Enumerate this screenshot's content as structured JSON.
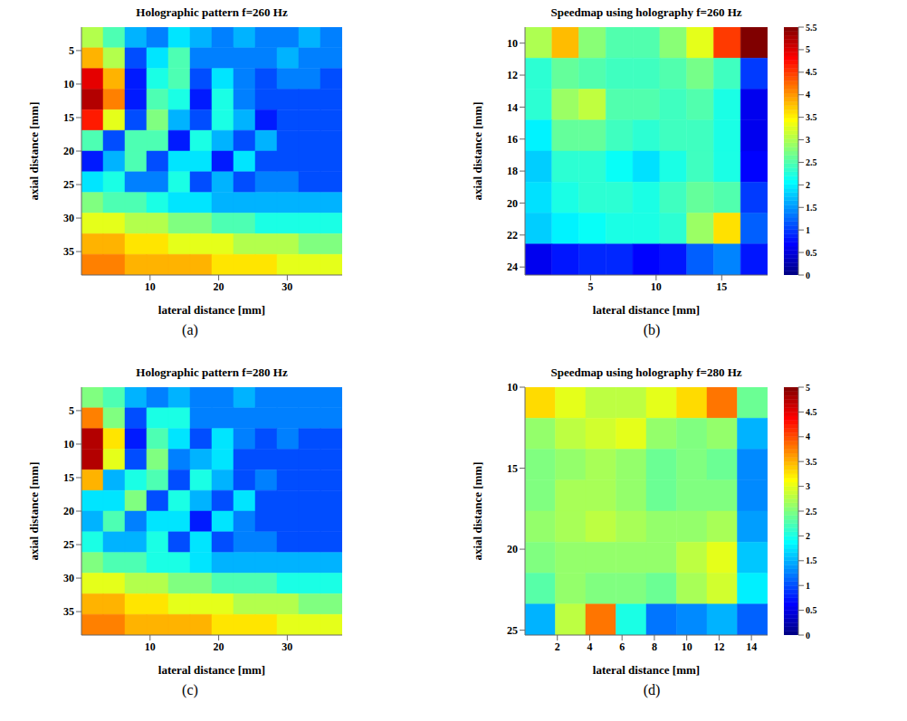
{
  "chart_data": [
    {
      "type": "heatmap",
      "panel": "(a)",
      "title": "Holographic pattern f=260 Hz",
      "xlabel": "lateral distance [mm]",
      "ylabel": "axial distance [mm]",
      "xlim": [
        0,
        38
      ],
      "xticks": [
        10,
        20,
        30
      ],
      "ylim": [
        1.5,
        38.5
      ],
      "yticks": [
        5,
        10,
        15,
        20,
        25,
        30,
        35
      ],
      "x": [
        1.58,
        4.75,
        7.92,
        11.08,
        14.25,
        17.42,
        20.58,
        23.75,
        26.92,
        30.08,
        33.25,
        36.42
      ],
      "y": [
        3.04,
        6.13,
        9.21,
        12.29,
        15.38,
        18.46,
        21.54,
        24.63,
        27.71,
        30.79,
        33.88,
        36.96
      ],
      "color_range": [
        0,
        1
      ],
      "cells": [
        [
          0.55,
          0.45,
          0.3,
          0.25,
          0.35,
          0.3,
          0.25,
          0.3,
          0.25,
          0.25,
          0.3,
          0.25
        ],
        [
          0.7,
          0.55,
          0.2,
          0.35,
          0.45,
          0.25,
          0.25,
          0.25,
          0.25,
          0.3,
          0.25,
          0.25
        ],
        [
          0.9,
          0.7,
          0.15,
          0.4,
          0.45,
          0.2,
          0.35,
          0.25,
          0.2,
          0.25,
          0.25,
          0.2
        ],
        [
          0.95,
          0.75,
          0.15,
          0.45,
          0.4,
          0.15,
          0.4,
          0.25,
          0.2,
          0.2,
          0.2,
          0.2
        ],
        [
          0.85,
          0.6,
          0.2,
          0.5,
          0.3,
          0.2,
          0.4,
          0.3,
          0.15,
          0.2,
          0.2,
          0.2
        ],
        [
          0.45,
          0.2,
          0.45,
          0.45,
          0.15,
          0.4,
          0.3,
          0.2,
          0.3,
          0.2,
          0.2,
          0.2
        ],
        [
          0.15,
          0.3,
          0.45,
          0.2,
          0.35,
          0.35,
          0.15,
          0.35,
          0.2,
          0.2,
          0.2,
          0.2
        ],
        [
          0.35,
          0.4,
          0.25,
          0.25,
          0.4,
          0.2,
          0.3,
          0.2,
          0.25,
          0.25,
          0.2,
          0.2
        ],
        [
          0.5,
          0.45,
          0.45,
          0.4,
          0.35,
          0.35,
          0.3,
          0.3,
          0.3,
          0.3,
          0.3,
          0.3
        ],
        [
          0.6,
          0.6,
          0.55,
          0.55,
          0.5,
          0.5,
          0.45,
          0.45,
          0.4,
          0.4,
          0.4,
          0.4
        ],
        [
          0.7,
          0.7,
          0.65,
          0.65,
          0.6,
          0.6,
          0.6,
          0.55,
          0.55,
          0.55,
          0.5,
          0.5
        ],
        [
          0.75,
          0.75,
          0.7,
          0.7,
          0.7,
          0.7,
          0.65,
          0.65,
          0.65,
          0.6,
          0.6,
          0.6
        ]
      ]
    },
    {
      "type": "heatmap",
      "panel": "(b)",
      "title": "Speedmap using holography f=260 Hz",
      "xlabel": "lateral distance [mm]",
      "ylabel": "axial distance [mm]",
      "xlim": [
        0,
        18.5
      ],
      "xticks": [
        5,
        10,
        15
      ],
      "ylim": [
        9,
        24.5
      ],
      "yticks": [
        10,
        12,
        14,
        16,
        18,
        20,
        22,
        24
      ],
      "x": [
        1.03,
        3.08,
        5.14,
        7.19,
        9.25,
        11.31,
        13.36,
        15.42,
        17.47
      ],
      "y": [
        9.97,
        11.91,
        13.84,
        15.78,
        17.72,
        19.66,
        21.59,
        23.53
      ],
      "color_range": [
        0,
        5.5
      ],
      "color_ticks": [
        0,
        0.5,
        1,
        1.5,
        2,
        2.5,
        3,
        3.5,
        4,
        4.5,
        5,
        5.5
      ],
      "cells": [
        [
          3.0,
          3.8,
          2.8,
          2.5,
          2.5,
          2.8,
          3.3,
          4.5,
          5.5
        ],
        [
          2.3,
          2.6,
          2.5,
          2.4,
          2.4,
          2.5,
          2.7,
          2.4,
          1.0
        ],
        [
          2.3,
          2.9,
          3.1,
          2.5,
          2.5,
          2.4,
          2.5,
          2.2,
          0.6
        ],
        [
          2.0,
          2.6,
          2.6,
          2.4,
          2.3,
          2.4,
          2.4,
          2.2,
          0.6
        ],
        [
          1.8,
          2.3,
          2.3,
          2.1,
          1.9,
          2.2,
          2.4,
          2.2,
          0.7
        ],
        [
          1.9,
          2.2,
          2.3,
          2.3,
          2.2,
          2.4,
          2.6,
          2.5,
          1.0
        ],
        [
          1.8,
          2.0,
          2.1,
          2.2,
          2.2,
          2.3,
          2.9,
          3.6,
          1.2
        ],
        [
          0.6,
          0.8,
          0.9,
          0.9,
          0.7,
          0.8,
          1.2,
          1.4,
          0.8
        ]
      ]
    },
    {
      "type": "heatmap",
      "panel": "(c)",
      "title": "Holographic pattern f=280 Hz",
      "xlabel": "lateral distance [mm]",
      "ylabel": "axial distance [mm]",
      "xlim": [
        0,
        38
      ],
      "xticks": [
        10,
        20,
        30
      ],
      "ylim": [
        1.5,
        38.5
      ],
      "yticks": [
        5,
        10,
        15,
        20,
        25,
        30,
        35
      ],
      "x": [
        1.58,
        4.75,
        7.92,
        11.08,
        14.25,
        17.42,
        20.58,
        23.75,
        26.92,
        30.08,
        33.25,
        36.42
      ],
      "y": [
        3.04,
        6.13,
        9.21,
        12.29,
        15.38,
        18.46,
        21.54,
        24.63,
        27.71,
        30.79,
        33.88,
        36.96
      ],
      "color_range": [
        0,
        1
      ],
      "cells": [
        [
          0.5,
          0.45,
          0.3,
          0.25,
          0.3,
          0.25,
          0.25,
          0.3,
          0.25,
          0.25,
          0.25,
          0.25
        ],
        [
          0.75,
          0.5,
          0.2,
          0.4,
          0.4,
          0.25,
          0.25,
          0.25,
          0.25,
          0.25,
          0.25,
          0.25
        ],
        [
          0.95,
          0.65,
          0.15,
          0.45,
          0.35,
          0.2,
          0.35,
          0.25,
          0.2,
          0.25,
          0.2,
          0.2
        ],
        [
          0.95,
          0.6,
          0.2,
          0.5,
          0.25,
          0.3,
          0.35,
          0.2,
          0.2,
          0.2,
          0.2,
          0.2
        ],
        [
          0.7,
          0.3,
          0.4,
          0.45,
          0.2,
          0.4,
          0.3,
          0.2,
          0.25,
          0.2,
          0.2,
          0.2
        ],
        [
          0.35,
          0.35,
          0.5,
          0.2,
          0.4,
          0.3,
          0.2,
          0.35,
          0.2,
          0.2,
          0.2,
          0.2
        ],
        [
          0.3,
          0.45,
          0.25,
          0.35,
          0.35,
          0.15,
          0.35,
          0.25,
          0.2,
          0.2,
          0.2,
          0.2
        ],
        [
          0.4,
          0.3,
          0.3,
          0.4,
          0.2,
          0.35,
          0.2,
          0.25,
          0.25,
          0.2,
          0.2,
          0.2
        ],
        [
          0.5,
          0.45,
          0.45,
          0.4,
          0.4,
          0.35,
          0.3,
          0.3,
          0.3,
          0.3,
          0.3,
          0.3
        ],
        [
          0.6,
          0.6,
          0.55,
          0.55,
          0.5,
          0.5,
          0.45,
          0.45,
          0.45,
          0.4,
          0.4,
          0.4
        ],
        [
          0.7,
          0.7,
          0.65,
          0.65,
          0.6,
          0.6,
          0.6,
          0.55,
          0.55,
          0.55,
          0.5,
          0.5
        ],
        [
          0.75,
          0.75,
          0.7,
          0.7,
          0.7,
          0.7,
          0.65,
          0.65,
          0.65,
          0.6,
          0.6,
          0.6
        ]
      ]
    },
    {
      "type": "heatmap",
      "panel": "(d)",
      "title": "Speedmap using holography f=280 Hz",
      "xlabel": "lateral distance [mm]",
      "ylabel": "axial distance [mm]",
      "xlim": [
        0,
        15
      ],
      "xticks": [
        2,
        4,
        6,
        8,
        10,
        12,
        14
      ],
      "ylim": [
        10,
        25.3
      ],
      "yticks": [
        10,
        15,
        20,
        25
      ],
      "x": [
        0.94,
        2.81,
        4.69,
        6.56,
        8.44,
        10.31,
        12.19,
        14.06
      ],
      "y": [
        10.96,
        12.87,
        14.78,
        16.69,
        18.61,
        20.52,
        22.43,
        24.34
      ],
      "color_range": [
        0,
        5
      ],
      "color_ticks": [
        0,
        0.5,
        1,
        1.5,
        2,
        2.5,
        3,
        3.5,
        4,
        4.5,
        5
      ],
      "cells": [
        [
          3.3,
          3.0,
          2.8,
          2.8,
          3.0,
          3.3,
          3.8,
          2.4
        ],
        [
          2.6,
          2.8,
          2.9,
          3.0,
          2.6,
          2.5,
          2.6,
          1.5
        ],
        [
          2.5,
          2.6,
          2.7,
          2.6,
          2.4,
          2.5,
          2.4,
          1.3
        ],
        [
          2.5,
          2.7,
          2.7,
          2.6,
          2.4,
          2.5,
          2.5,
          1.3
        ],
        [
          2.6,
          2.7,
          2.8,
          2.7,
          2.6,
          2.6,
          2.7,
          1.4
        ],
        [
          2.5,
          2.6,
          2.6,
          2.6,
          2.6,
          2.8,
          3.0,
          1.6
        ],
        [
          2.3,
          2.6,
          2.5,
          2.5,
          2.4,
          2.7,
          2.9,
          1.8
        ],
        [
          1.5,
          2.8,
          3.8,
          2.0,
          1.2,
          1.3,
          1.5,
          1.1
        ]
      ]
    }
  ]
}
